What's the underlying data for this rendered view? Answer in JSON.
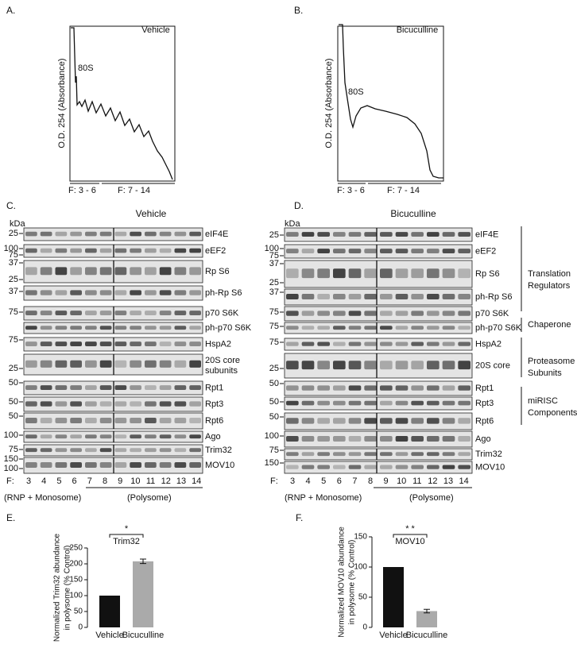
{
  "panels": {
    "A": {
      "label": "A.",
      "title": "Vehicle",
      "y_label": "O.D. 254 (Absorbance)",
      "peak": "80S",
      "fractions": [
        "F: 3 - 6",
        "F: 7 - 14"
      ]
    },
    "B": {
      "label": "B.",
      "title": "Bicuculline",
      "y_label": "O.D. 254 (Absorbance)",
      "peak": "80S",
      "fractions": [
        "F: 3 - 6",
        "F: 7 - 14"
      ]
    },
    "C": {
      "label": "C.",
      "title": "Vehicle",
      "unit": "kDa",
      "rows": [
        {
          "name": "eIF4E",
          "markers": [
            "25"
          ]
        },
        {
          "name": "eEF2",
          "markers": [
            "100",
            "75"
          ]
        },
        {
          "name": "Rp S6",
          "markers": [
            "37",
            "25"
          ]
        },
        {
          "name": "ph-Rp S6",
          "markers": [
            "37"
          ]
        },
        {
          "name": "p70 S6K",
          "markers": [
            "75"
          ]
        },
        {
          "name": "ph-p70 S6K",
          "markers": []
        },
        {
          "name": "HspA2",
          "markers": [
            "75"
          ]
        },
        {
          "name": [
            "20S core",
            "subunits"
          ],
          "markers": [
            "25"
          ]
        },
        {
          "name": "Rpt1",
          "markers": [
            "50"
          ]
        },
        {
          "name": "Rpt3",
          "markers": [
            "50"
          ]
        },
        {
          "name": "Rpt6",
          "markers": [
            "50"
          ]
        },
        {
          "name": "Ago",
          "markers": [
            "100"
          ]
        },
        {
          "name": "Trim32",
          "markers": [
            "75"
          ]
        },
        {
          "name": "MOV10",
          "markers": [
            "150",
            "100"
          ]
        }
      ],
      "fraction_prefix": "F:",
      "fractions": [
        3,
        4,
        5,
        6,
        7,
        8,
        9,
        10,
        11,
        12,
        13,
        14
      ],
      "groups": [
        "(RNP + Monosome)",
        "(Polysome)"
      ]
    },
    "D": {
      "label": "D.",
      "title": "Bicuculline",
      "unit": "kDa",
      "rows": [
        {
          "name": "eIF4E",
          "markers": [
            "25"
          ]
        },
        {
          "name": "eEF2",
          "markers": [
            "100",
            "75"
          ]
        },
        {
          "name": "Rp S6",
          "markers": [
            "37",
            "25"
          ]
        },
        {
          "name": "ph-Rp S6",
          "markers": [
            "37"
          ]
        },
        {
          "name": "p70 S6K",
          "markers": [
            "75"
          ]
        },
        {
          "name": "ph-p70 S6K",
          "markers": [
            "75"
          ]
        },
        {
          "name": "HspA2",
          "markers": [
            "75"
          ]
        },
        {
          "name": "20S core",
          "markers": [
            "25"
          ]
        },
        {
          "name": "Rpt1",
          "markers": [
            "50"
          ]
        },
        {
          "name": "Rpt3",
          "markers": [
            "50"
          ]
        },
        {
          "name": "Rpt6",
          "markers": [
            "50"
          ]
        },
        {
          "name": "Ago",
          "markers": [
            "100"
          ]
        },
        {
          "name": "Trim32",
          "markers": [
            "75"
          ]
        },
        {
          "name": "MOV10",
          "markers": [
            "150"
          ]
        }
      ],
      "fraction_prefix": "F:",
      "fractions": [
        3,
        4,
        5,
        6,
        7,
        8,
        9,
        10,
        11,
        12,
        13,
        14
      ],
      "groups": [
        "(RNP + Monosome)",
        "(Polysome)"
      ],
      "categories": [
        [
          "Translation",
          "Regulators"
        ],
        [
          "Chaperone"
        ],
        [
          "Proteasome",
          "Subunits"
        ],
        [
          "miRISC",
          "Components"
        ]
      ]
    }
  },
  "chart_data": [
    {
      "type": "bar",
      "panel": "E.",
      "y_label": [
        "Normalized Trim32 abundance",
        "in polysome (% Control)"
      ],
      "categories": [
        "Vehicle",
        "Bicuculline"
      ],
      "values": [
        100,
        208
      ],
      "errors": [
        null,
        7
      ],
      "colors": [
        "#111111",
        "#aaaaaa"
      ],
      "ylim": [
        0,
        250
      ],
      "yticks": [
        0,
        50,
        100,
        150,
        200,
        250
      ],
      "significance": "*",
      "significance_label": "Trim32"
    },
    {
      "type": "bar",
      "panel": "F.",
      "y_label": [
        "Normalized MOV10 abundance",
        "in polysome (% Control)"
      ],
      "categories": [
        "Vehicle",
        "Bicuculline"
      ],
      "values": [
        100,
        27
      ],
      "errors": [
        null,
        3
      ],
      "colors": [
        "#111111",
        "#aaaaaa"
      ],
      "ylim": [
        0,
        150
      ],
      "yticks": [
        0,
        50,
        100,
        150
      ],
      "significance": "* *",
      "significance_label": "MOV10"
    }
  ]
}
